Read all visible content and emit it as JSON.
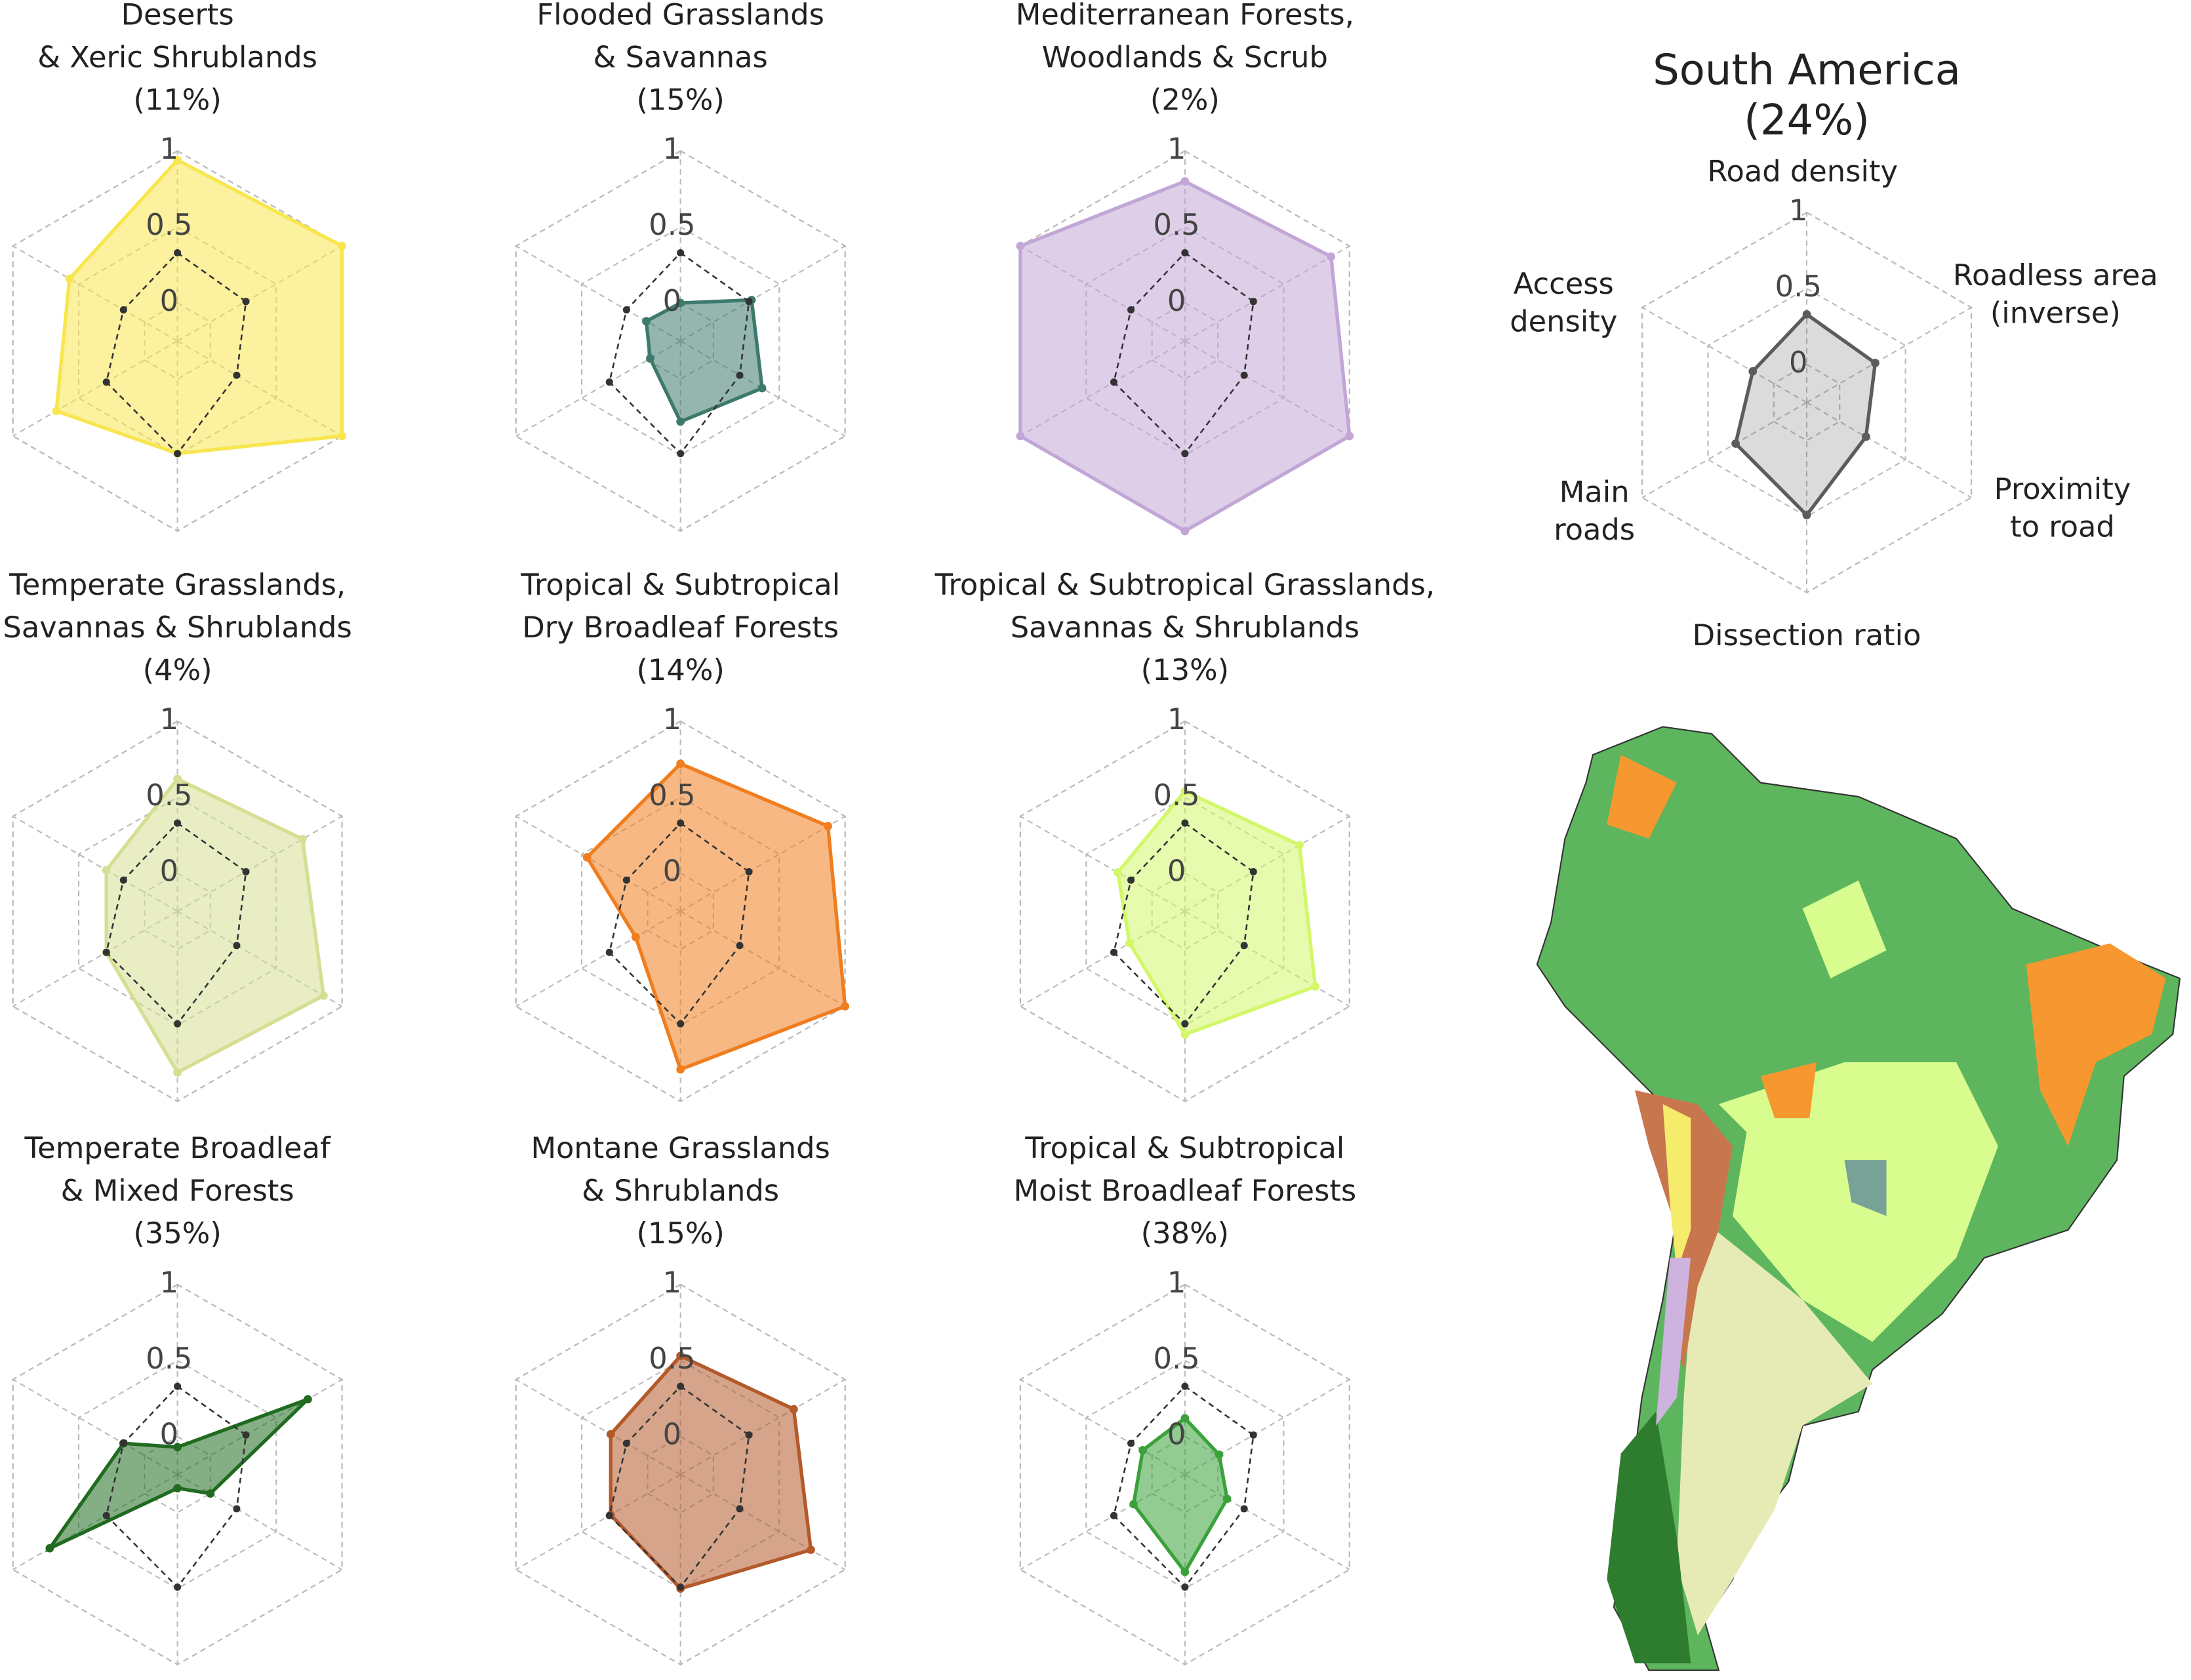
{
  "chart_data": [
    {
      "type": "radar",
      "title": [
        "Deserts",
        "& Xeric Shrublands"
      ],
      "subtitle": "(11%)",
      "rlim": [
        -0.25,
        1
      ],
      "rticks": [
        0,
        0.5,
        1
      ],
      "series": [
        {
          "color": "#f7e64e",
          "values": [
            0.94,
            1.0,
            1.0,
            0.49,
            0.67,
            0.57
          ]
        }
      ]
    },
    {
      "type": "radar",
      "title": [
        "Flooded Grasslands",
        "& Savannas"
      ],
      "subtitle": "(15%)",
      "rlim": [
        -0.25,
        1
      ],
      "rticks": [
        0,
        0.5,
        1
      ],
      "series": [
        {
          "color": "#3d7a6c",
          "values": [
            0.0,
            0.29,
            0.37,
            0.28,
            -0.02,
            0.01
          ]
        }
      ]
    },
    {
      "type": "radar",
      "title": [
        "Mediterranean Forests,",
        "Woodlands & Scrub"
      ],
      "subtitle": "(2%)",
      "rlim": [
        -0.25,
        1
      ],
      "rticks": [
        0,
        0.5,
        1
      ],
      "series": [
        {
          "color": "#c2a6d6",
          "values": [
            0.8,
            0.86,
            1.0,
            1.0,
            1.0,
            1.0
          ]
        }
      ]
    },
    {
      "type": "radar",
      "title": [
        "Temperate Grasslands,",
        "Savannas & Shrublands"
      ],
      "subtitle": "(4%)",
      "rlim": [
        -0.25,
        1
      ],
      "rticks": [
        0,
        0.5,
        1
      ],
      "series": [
        {
          "color": "#d6de92",
          "values": [
            0.62,
            0.7,
            0.86,
            0.81,
            0.29,
            0.29
          ]
        }
      ]
    },
    {
      "type": "radar",
      "title": [
        "Tropical & Subtropical",
        "Dry Broadleaf Forests"
      ],
      "subtitle": "(14%)",
      "rlim": [
        -0.25,
        1
      ],
      "rticks": [
        0,
        0.5,
        1
      ],
      "series": [
        {
          "color": "#f07d1e",
          "values": [
            0.72,
            0.87,
            1.0,
            0.79,
            0.09,
            0.46
          ]
        }
      ]
    },
    {
      "type": "radar",
      "title": [
        "Tropical & Subtropical Grasslands,",
        "Savannas & Shrublands"
      ],
      "subtitle": "(13%)",
      "rlim": [
        -0.25,
        1
      ],
      "rticks": [
        0,
        0.5,
        1
      ],
      "series": [
        {
          "color": "#d2f86a",
          "values": [
            0.54,
            0.62,
            0.74,
            0.56,
            0.17,
            0.26
          ]
        }
      ]
    },
    {
      "type": "radar",
      "title": [
        "Temperate Broadleaf",
        "& Mixed Forests"
      ],
      "subtitle": "(35%)",
      "rlim": [
        -0.25,
        1
      ],
      "rticks": [
        0,
        0.5,
        1
      ],
      "series": [
        {
          "color": "#1f6b1f",
          "values": [
            -0.07,
            0.74,
            0.0,
            -0.16,
            0.72,
            0.16
          ]
        }
      ]
    },
    {
      "type": "radar",
      "title": [
        "Montane Grasslands",
        "& Shrublands"
      ],
      "subtitle": "(15%)",
      "rlim": [
        -0.25,
        1
      ],
      "rticks": [
        0,
        0.5,
        1
      ],
      "series": [
        {
          "color": "#b3592a",
          "values": [
            0.53,
            0.61,
            0.74,
            0.5,
            0.28,
            0.28
          ]
        }
      ]
    },
    {
      "type": "radar",
      "title": [
        "Tropical & Subtropical",
        "Moist Broadleaf Forests"
      ],
      "subtitle": "(38%)",
      "rlim": [
        -0.25,
        1
      ],
      "rticks": [
        0,
        0.5,
        1
      ],
      "series": [
        {
          "color": "#3ba23b",
          "values": [
            0.12,
            0.01,
            0.07,
            0.39,
            0.14,
            0.07
          ]
        }
      ]
    },
    {
      "type": "radar",
      "title": [
        "South America"
      ],
      "subtitle": "(24%)",
      "rlim": [
        -0.25,
        1
      ],
      "rticks": [
        0,
        0.5,
        1
      ],
      "axes": [
        [
          "Road density"
        ],
        [
          "Roadless area",
          "(inverse)"
        ],
        [
          "Proximity",
          "to road"
        ],
        [
          "Dissection ratio"
        ],
        [
          "Main",
          "roads"
        ],
        [
          "Access",
          "density"
        ]
      ],
      "series": [
        {
          "color": "#5c5c5c",
          "values": [
            0.33,
            0.27,
            0.2,
            0.49,
            0.29,
            0.16
          ]
        }
      ]
    }
  ]
}
